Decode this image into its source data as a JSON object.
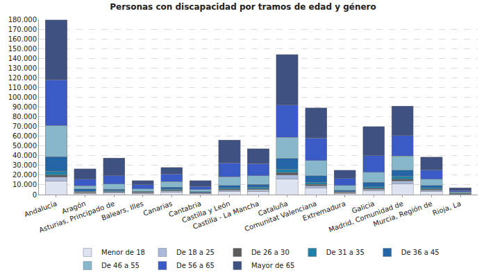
{
  "chart_data": {
    "type": "bar",
    "title": "Personas con discapacidad por tramos de edad y género",
    "stacked": true,
    "grid": true,
    "legend": "bottom",
    "categories": [
      "Andalucía",
      "Aragón",
      "Asturias, Principado de",
      "Balears, Illes",
      "Canarias",
      "Cantabria",
      "Castilla y León",
      "Castilla - La Mancha",
      "Cataluña",
      "Comunitat Valenciana",
      "Extremadura",
      "Galicia",
      "Madrid, Comunidad de",
      "Murcia, Región de",
      "Rioja, La"
    ],
    "series": [
      {
        "name": "Menor de 18",
        "color": "#dde3f1",
        "values": [
          14000,
          1200,
          1500,
          1000,
          2500,
          800,
          3000,
          3500,
          16000,
          6500,
          1200,
          4000,
          11000,
          3000,
          300
        ]
      },
      {
        "name": "De 18 a 25",
        "color": "#a9b9d9",
        "values": [
          4000,
          800,
          1000,
          600,
          1200,
          500,
          1500,
          1500,
          4000,
          2500,
          800,
          1500,
          3000,
          1500,
          200
        ]
      },
      {
        "name": "De 26 a 30",
        "color": "#5b5b5b",
        "values": [
          2000,
          600,
          700,
          400,
          800,
          400,
          1000,
          1000,
          2500,
          1500,
          500,
          1000,
          2000,
          1000,
          200
        ]
      },
      {
        "name": "De 31 a 35",
        "color": "#1f80a8",
        "values": [
          4000,
          900,
          800,
          500,
          1000,
          400,
          1500,
          1500,
          3500,
          2000,
          600,
          1500,
          3000,
          1500,
          300
        ]
      },
      {
        "name": "De 36 a 45",
        "color": "#2465a6",
        "values": [
          15000,
          2500,
          1500,
          1000,
          2000,
          900,
          2500,
          3000,
          11000,
          7000,
          1400,
          4500,
          6000,
          2500,
          500
        ]
      },
      {
        "name": "De 46 a 55",
        "color": "#87b7cb",
        "values": [
          32000,
          3000,
          5500,
          2500,
          6000,
          2000,
          9000,
          9000,
          22000,
          15500,
          5000,
          10500,
          14500,
          6500,
          1000
        ]
      },
      {
        "name": "De 56 a 65",
        "color": "#3a5bc6",
        "values": [
          47000,
          7000,
          8500,
          4000,
          7500,
          3500,
          14000,
          12500,
          33000,
          23000,
          7000,
          17000,
          21000,
          9500,
          1500
        ]
      },
      {
        "name": "Mayor de 65",
        "color": "#3f5181",
        "values": [
          61500,
          10500,
          18000,
          4500,
          7000,
          6000,
          23500,
          15000,
          52000,
          31000,
          8500,
          30000,
          30500,
          13000,
          3000
        ]
      }
    ],
    "ylim": [
      0,
      180000
    ],
    "yticks": [
      0,
      {
        "value": 10000,
        "label": "10.000"
      },
      {
        "value": 20000,
        "label": "20.000"
      },
      {
        "value": 30000,
        "label": "30.000"
      },
      {
        "value": 40000,
        "label": "40.000"
      },
      {
        "value": 50000,
        "label": "50.000"
      },
      {
        "value": 60000,
        "label": "60.000"
      },
      {
        "value": 70000,
        "label": "70.000"
      },
      {
        "value": 80000,
        "label": "80.000"
      },
      {
        "value": 90000,
        "label": "90.000"
      },
      {
        "value": 100000,
        "label": "100.000"
      },
      {
        "value": 110000,
        "label": "110.000"
      },
      {
        "value": 120000,
        "label": "120.000"
      },
      {
        "value": 130000,
        "label": "130.000"
      },
      {
        "value": 140000,
        "label": "140.000"
      },
      {
        "value": 150000,
        "label": "150.000"
      },
      {
        "value": 160000,
        "label": "160.000"
      },
      {
        "value": 170000,
        "label": "170.000"
      },
      {
        "value": 180000,
        "label": "180.000"
      }
    ]
  }
}
